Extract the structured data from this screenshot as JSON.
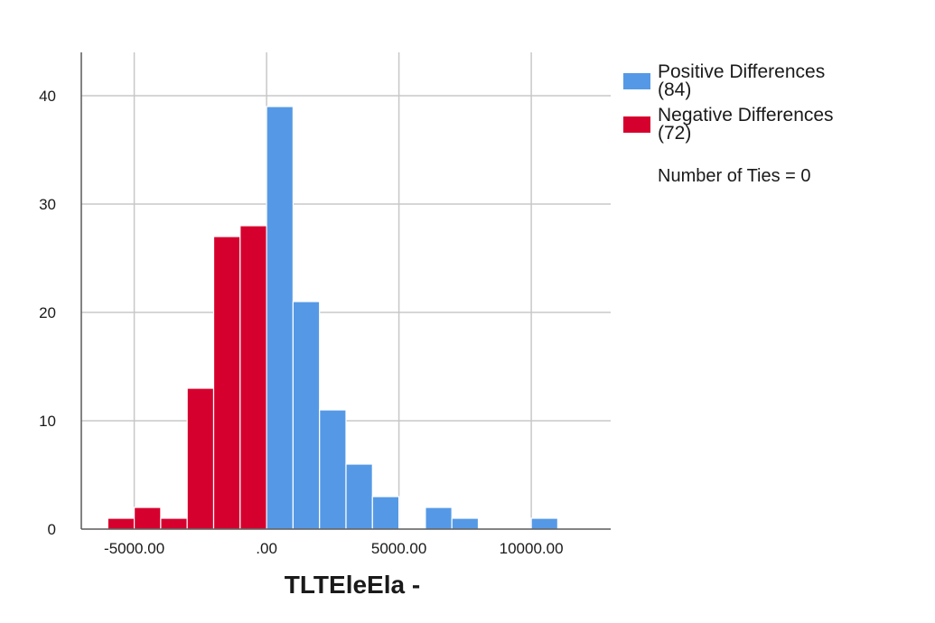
{
  "chart_data": {
    "type": "bar",
    "xlabel": "TLTEleEla -",
    "ylim": [
      0,
      44
    ],
    "xlim": [
      -7000,
      13000
    ],
    "bin_width": 1000,
    "y_ticks": [
      0,
      10,
      20,
      30,
      40
    ],
    "x_ticks": [
      {
        "value": -5000,
        "label": "-5000.00"
      },
      {
        "value": 0,
        "label": ".00"
      },
      {
        "value": 5000,
        "label": "5000.00"
      },
      {
        "value": 10000,
        "label": "10000.00"
      }
    ],
    "grid": true,
    "legend_position": "right",
    "series": [
      {
        "name": "Negative Differences (72)",
        "color": "#d6002e",
        "bins": [
          {
            "start": -6000,
            "end": -5000,
            "value": 1
          },
          {
            "start": -5000,
            "end": -4000,
            "value": 2
          },
          {
            "start": -4000,
            "end": -3000,
            "value": 1
          },
          {
            "start": -3000,
            "end": -2000,
            "value": 13
          },
          {
            "start": -2000,
            "end": -1000,
            "value": 27
          },
          {
            "start": -1000,
            "end": 0,
            "value": 28
          }
        ]
      },
      {
        "name": "Positive Differences (84)",
        "color": "#5599e6",
        "bins": [
          {
            "start": 0,
            "end": 1000,
            "value": 39
          },
          {
            "start": 1000,
            "end": 2000,
            "value": 21
          },
          {
            "start": 2000,
            "end": 3000,
            "value": 11
          },
          {
            "start": 3000,
            "end": 4000,
            "value": 6
          },
          {
            "start": 4000,
            "end": 5000,
            "value": 3
          },
          {
            "start": 6000,
            "end": 7000,
            "value": 2
          },
          {
            "start": 7000,
            "end": 8000,
            "value": 1
          },
          {
            "start": 10000,
            "end": 11000,
            "value": 1
          }
        ]
      }
    ]
  },
  "legend": {
    "positive": {
      "text": "Positive Differences\n(84)",
      "color": "#5599e6"
    },
    "negative": {
      "text": "Negative Differences\n(72)",
      "color": "#d6002e"
    },
    "ties": "Number of Ties = 0"
  }
}
